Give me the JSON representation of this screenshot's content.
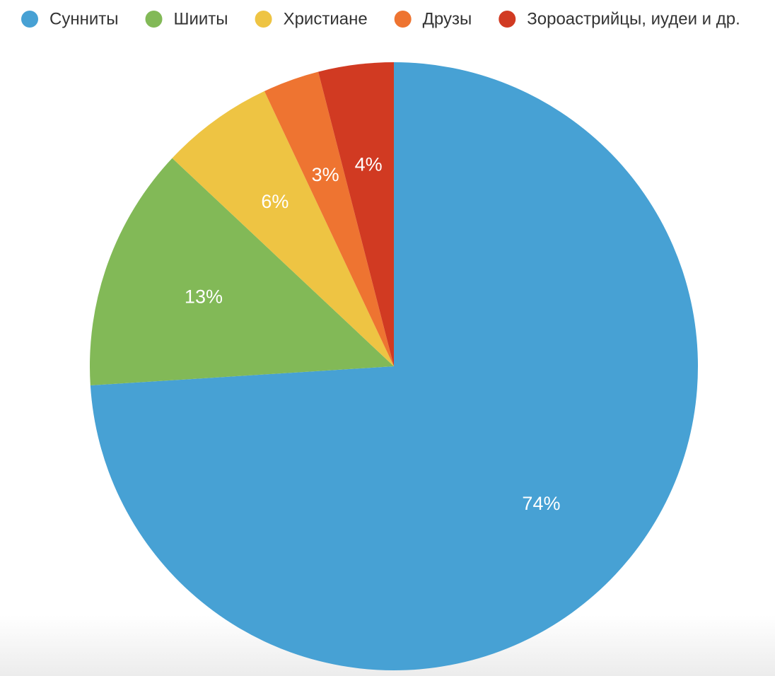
{
  "chart_data": {
    "type": "pie",
    "categories": [
      "Сунниты",
      "Шииты",
      "Христиане",
      "Друзы",
      "Зороастрийцы, иудеи и др."
    ],
    "values": [
      74,
      13,
      6,
      3,
      4
    ],
    "value_labels": [
      "74%",
      "13%",
      "6%",
      "3%",
      "4%"
    ],
    "colors": [
      "#47a1d4",
      "#82b957",
      "#eec443",
      "#ee7431",
      "#d13a22"
    ],
    "legend": "top"
  }
}
